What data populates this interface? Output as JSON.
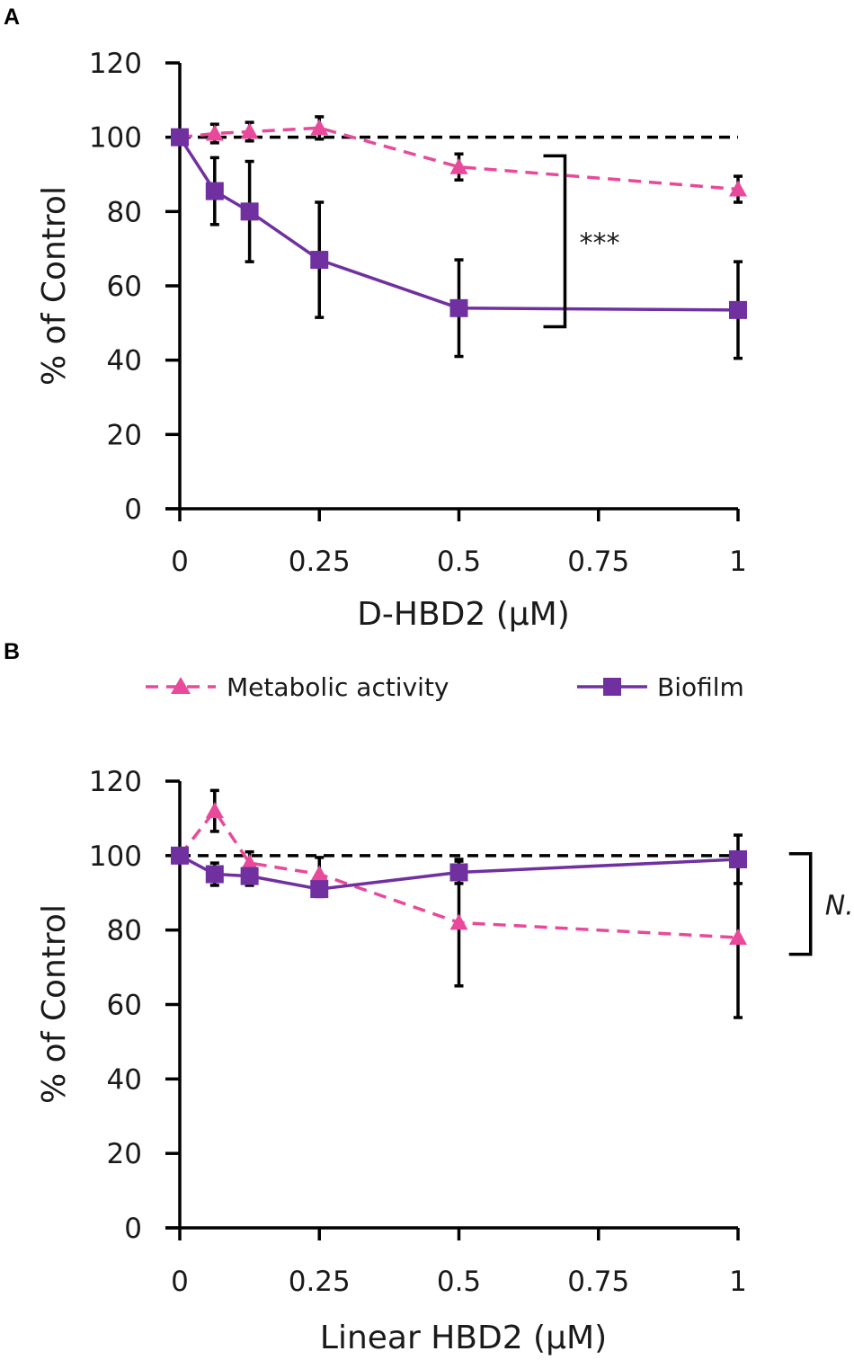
{
  "chart_data": [
    {
      "panel": "A",
      "type": "line",
      "xlabel": "D-HBD2 (μM)",
      "ylabel": "% of Control",
      "xlim": [
        0,
        1
      ],
      "ylim": [
        0,
        120
      ],
      "xticks": [
        0,
        0.25,
        0.5,
        0.75,
        1
      ],
      "xtick_labels": [
        "0",
        "0.25",
        "0.5",
        "0.75",
        "1"
      ],
      "yticks": [
        0,
        20,
        40,
        60,
        80,
        100,
        120
      ],
      "ytick_labels": [
        "0",
        "20",
        "40",
        "60",
        "80",
        "100",
        "120"
      ],
      "reference_line": 100,
      "series": [
        {
          "name": "Metabolic activity",
          "color": "#e8499a",
          "marker": "triangle",
          "dashed": true,
          "x": [
            0,
            0.0625,
            0.125,
            0.25,
            0.5,
            1
          ],
          "y": [
            100,
            101,
            101.5,
            102.5,
            92,
            86
          ],
          "err": [
            0,
            2.5,
            2.5,
            3,
            3.5,
            3.5
          ]
        },
        {
          "name": "Biofilm",
          "color": "#7030a0",
          "marker": "square",
          "dashed": false,
          "x": [
            0,
            0.0625,
            0.125,
            0.25,
            0.5,
            1
          ],
          "y": [
            100,
            85.5,
            80,
            67,
            54,
            53.5
          ],
          "err": [
            0,
            9,
            13.5,
            15.5,
            13,
            13
          ]
        }
      ],
      "significance": {
        "label": "***",
        "y_low": 49,
        "y_high": 95,
        "x": 0.69
      }
    },
    {
      "panel": "B",
      "type": "line",
      "xlabel": "Linear HBD2 (μM)",
      "ylabel": "% of Control",
      "xlim": [
        0,
        1
      ],
      "ylim": [
        0,
        120
      ],
      "xticks": [
        0,
        0.25,
        0.5,
        0.75,
        1
      ],
      "xtick_labels": [
        "0",
        "0.25",
        "0.5",
        "0.75",
        "1"
      ],
      "yticks": [
        0,
        20,
        40,
        60,
        80,
        100,
        120
      ],
      "ytick_labels": [
        "0",
        "20",
        "40",
        "60",
        "80",
        "100",
        "120"
      ],
      "reference_line": 100,
      "series": [
        {
          "name": "Metabolic activity",
          "color": "#e8499a",
          "marker": "triangle",
          "dashed": true,
          "x": [
            0,
            0.0625,
            0.125,
            0.25,
            0.5,
            1
          ],
          "y": [
            100,
            112,
            98,
            95,
            82,
            78
          ],
          "err": [
            0,
            5.5,
            3,
            4.5,
            17,
            21.5
          ]
        },
        {
          "name": "Biofilm",
          "color": "#7030a0",
          "marker": "square",
          "dashed": false,
          "x": [
            0,
            0.0625,
            0.125,
            0.25,
            0.5,
            1
          ],
          "y": [
            100,
            95,
            94.5,
            91,
            95.5,
            99
          ],
          "err": [
            0,
            3,
            2.5,
            2,
            3,
            6.5
          ]
        }
      ],
      "significance": {
        "label": "N.S.",
        "y_low": 73.5,
        "y_high": 100.5,
        "x": 1.13
      }
    }
  ],
  "legend": {
    "items": [
      {
        "label": "Metabolic activity",
        "color": "#e8499a",
        "marker": "triangle",
        "dashed": true
      },
      {
        "label": "Biofilm",
        "color": "#7030a0",
        "marker": "square",
        "dashed": false
      }
    ],
    "placement": "between panels"
  }
}
